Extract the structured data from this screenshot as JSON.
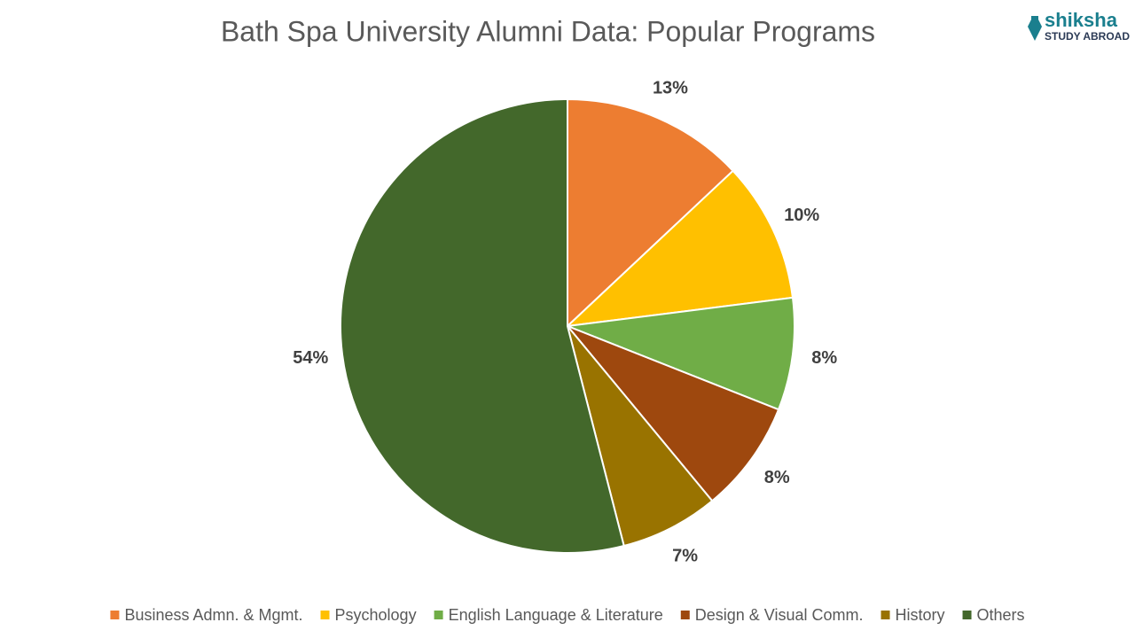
{
  "logo": {
    "name": "shiksha",
    "tagline": "STUDY ABROAD"
  },
  "chart_data": {
    "type": "pie",
    "title": "Bath Spa University Alumni Data: Popular Programs",
    "categories": [
      "Business Admn. & Mgmt.",
      "Psychology",
      "English Language & Literature",
      "Design & Visual Comm.",
      "History",
      "Others"
    ],
    "values": [
      13,
      10,
      8,
      8,
      7,
      54
    ],
    "value_labels": [
      "13%",
      "10%",
      "8%",
      "8%",
      "7%",
      "54%"
    ],
    "colors": [
      "#ED7D31",
      "#FFC000",
      "#70AD47",
      "#9E480E",
      "#997300",
      "#43682B"
    ],
    "legend": "bottom"
  }
}
